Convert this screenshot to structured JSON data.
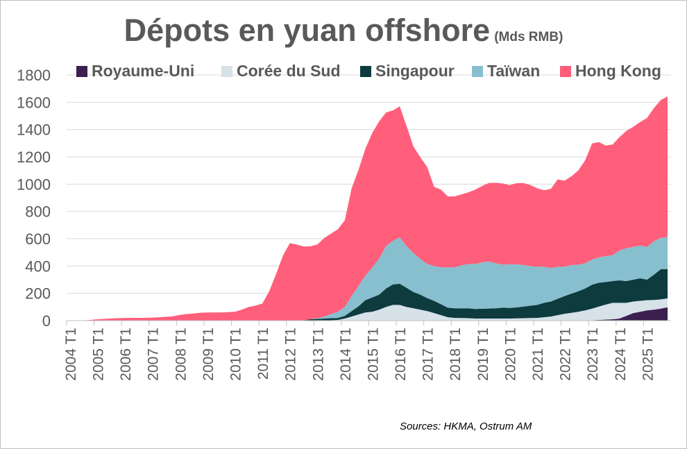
{
  "chart_data": {
    "type": "area",
    "stacked": true,
    "title": "Dépots en yuan offshore",
    "subtitle": "(Mds RMB)",
    "xlabel": "",
    "ylabel": "",
    "ylim": [
      0,
      1800
    ],
    "yticks": [
      0,
      200,
      400,
      600,
      800,
      1000,
      1200,
      1400,
      1600,
      1800
    ],
    "grid": true,
    "legend": "top",
    "x_tick_labels": [
      "2004 T1",
      "2005 T1",
      "2006 T1",
      "2007 T1",
      "2008 T1",
      "2009 T1",
      "2010 T1",
      "2011 T1",
      "2012 T1",
      "2013 T1",
      "2014 T1",
      "2015 T1",
      "2016 T1",
      "2017 T1",
      "2018 T1",
      "2019 T1",
      "2020 T1",
      "2021 T1",
      "2022 T1",
      "2023 T1",
      "2024 T1",
      "2025 T1"
    ],
    "x_start": "2004 T1",
    "x_end": "2025 T4",
    "series": [
      {
        "name": "Royaume-Uni",
        "color": "#3b1f4e",
        "points": [
          [
            "2004 T1",
            0
          ],
          [
            "2022 T4",
            0
          ],
          [
            "2023 T1",
            3
          ],
          [
            "2023 T4",
            10
          ],
          [
            "2024 T1",
            15
          ],
          [
            "2024 T2",
            35
          ],
          [
            "2024 T3",
            55
          ],
          [
            "2024 T4",
            65
          ],
          [
            "2025 T1",
            75
          ],
          [
            "2025 T2",
            80
          ],
          [
            "2025 T3",
            88
          ],
          [
            "2025 T4",
            98
          ]
        ]
      },
      {
        "name": "Corée du Sud",
        "color": "#d6e1e8",
        "points": [
          [
            "2004 T1",
            0
          ],
          [
            "2013 T2",
            0
          ],
          [
            "2013 T4",
            5
          ],
          [
            "2014 T1",
            15
          ],
          [
            "2014 T2",
            30
          ],
          [
            "2014 T3",
            45
          ],
          [
            "2014 T4",
            60
          ],
          [
            "2015 T1",
            65
          ],
          [
            "2015 T2",
            80
          ],
          [
            "2015 T3",
            100
          ],
          [
            "2015 T4",
            115
          ],
          [
            "2016 T1",
            115
          ],
          [
            "2016 T2",
            100
          ],
          [
            "2016 T4",
            80
          ],
          [
            "2017 T1",
            70
          ],
          [
            "2017 T2",
            55
          ],
          [
            "2017 T3",
            40
          ],
          [
            "2017 T4",
            25
          ],
          [
            "2018 T1",
            20
          ],
          [
            "2018 T3",
            18
          ],
          [
            "2018 T4",
            15
          ],
          [
            "2019 T2",
            15
          ],
          [
            "2019 T3",
            15
          ],
          [
            "2020 T1",
            15
          ],
          [
            "2020 T3",
            18
          ],
          [
            "2021 T1",
            20
          ],
          [
            "2021 T3",
            30
          ],
          [
            "2022 T1",
            50
          ],
          [
            "2022 T3",
            65
          ],
          [
            "2023 T1",
            85
          ],
          [
            "2023 T3",
            110
          ],
          [
            "2023 T4",
            120
          ],
          [
            "2024 T1",
            115
          ],
          [
            "2024 T2",
            95
          ],
          [
            "2024 T3",
            85
          ],
          [
            "2025 T1",
            75
          ],
          [
            "2025 T3",
            68
          ],
          [
            "2025 T4",
            65
          ]
        ]
      },
      {
        "name": "Singapour",
        "color": "#0d3b3e",
        "points": [
          [
            "2004 T1",
            0
          ],
          [
            "2011 T1",
            0
          ],
          [
            "2011 T4",
            2
          ],
          [
            "2012 T3",
            3
          ],
          [
            "2012 T4",
            10
          ],
          [
            "2013 T2",
            15
          ],
          [
            "2013 T4",
            15
          ],
          [
            "2014 T1",
            20
          ],
          [
            "2014 T2",
            40
          ],
          [
            "2014 T3",
            60
          ],
          [
            "2014 T4",
            90
          ],
          [
            "2015 T1",
            105
          ],
          [
            "2015 T2",
            110
          ],
          [
            "2015 T3",
            135
          ],
          [
            "2015 T4",
            150
          ],
          [
            "2016 T1",
            155
          ],
          [
            "2016 T2",
            140
          ],
          [
            "2016 T3",
            120
          ],
          [
            "2016 T4",
            110
          ],
          [
            "2017 T1",
            95
          ],
          [
            "2017 T2",
            90
          ],
          [
            "2017 T3",
            80
          ],
          [
            "2017 T4",
            70
          ],
          [
            "2018 T1",
            70
          ],
          [
            "2018 T3",
            72
          ],
          [
            "2018 T4",
            70
          ],
          [
            "2019 T1",
            72
          ],
          [
            "2019 T3",
            75
          ],
          [
            "2019 T4",
            80
          ],
          [
            "2020 T1",
            78
          ],
          [
            "2020 T2",
            80
          ],
          [
            "2020 T3",
            85
          ],
          [
            "2020 T4",
            90
          ],
          [
            "2021 T1",
            95
          ],
          [
            "2021 T2",
            105
          ],
          [
            "2021 T3",
            110
          ],
          [
            "2021 T4",
            120
          ],
          [
            "2022 T1",
            130
          ],
          [
            "2022 T2",
            140
          ],
          [
            "2022 T3",
            150
          ],
          [
            "2022 T4",
            160
          ],
          [
            "2023 T1",
            175
          ],
          [
            "2023 T2",
            175
          ],
          [
            "2023 T3",
            165
          ],
          [
            "2023 T4",
            160
          ],
          [
            "2024 T1",
            165
          ],
          [
            "2024 T2",
            160
          ],
          [
            "2024 T3",
            160
          ],
          [
            "2024 T4",
            165
          ],
          [
            "2025 T1",
            150
          ],
          [
            "2025 T2",
            185
          ],
          [
            "2025 T3",
            220
          ],
          [
            "2025 T4",
            215
          ]
        ]
      },
      {
        "name": "Taïwan",
        "color": "#88bfcf",
        "points": [
          [
            "2004 T1",
            0
          ],
          [
            "2012 T4",
            0
          ],
          [
            "2013 T1",
            5
          ],
          [
            "2013 T2",
            15
          ],
          [
            "2013 T3",
            30
          ],
          [
            "2013 T4",
            45
          ],
          [
            "2014 T1",
            65
          ],
          [
            "2014 T2",
            110
          ],
          [
            "2014 T3",
            150
          ],
          [
            "2014 T4",
            180
          ],
          [
            "2015 T1",
            220
          ],
          [
            "2015 T2",
            265
          ],
          [
            "2015 T3",
            310
          ],
          [
            "2015 T4",
            320
          ],
          [
            "2016 T1",
            340
          ],
          [
            "2016 T2",
            305
          ],
          [
            "2016 T3",
            285
          ],
          [
            "2016 T4",
            262
          ],
          [
            "2017 T1",
            250
          ],
          [
            "2017 T2",
            255
          ],
          [
            "2017 T3",
            270
          ],
          [
            "2017 T4",
            295
          ],
          [
            "2018 T1",
            300
          ],
          [
            "2018 T2",
            315
          ],
          [
            "2018 T3",
            325
          ],
          [
            "2018 T4",
            330
          ],
          [
            "2019 T1",
            340
          ],
          [
            "2019 T2",
            345
          ],
          [
            "2019 T3",
            330
          ],
          [
            "2019 T4",
            315
          ],
          [
            "2020 T1",
            320
          ],
          [
            "2020 T2",
            315
          ],
          [
            "2020 T3",
            305
          ],
          [
            "2020 T4",
            290
          ],
          [
            "2021 T1",
            280
          ],
          [
            "2021 T2",
            265
          ],
          [
            "2021 T3",
            245
          ],
          [
            "2021 T4",
            235
          ],
          [
            "2022 T1",
            215
          ],
          [
            "2022 T2",
            210
          ],
          [
            "2022 T3",
            195
          ],
          [
            "2022 T4",
            185
          ],
          [
            "2023 T1",
            185
          ],
          [
            "2023 T2",
            185
          ],
          [
            "2023 T3",
            190
          ],
          [
            "2023 T4",
            190
          ],
          [
            "2024 T1",
            220
          ],
          [
            "2024 T2",
            240
          ],
          [
            "2024 T3",
            240
          ],
          [
            "2024 T4",
            240
          ],
          [
            "2025 T1",
            240
          ],
          [
            "2025 T2",
            245
          ],
          [
            "2025 T3",
            230
          ],
          [
            "2025 T4",
            235
          ]
        ]
      },
      {
        "name": "Hong Kong",
        "color": "#ff5f7a",
        "points": [
          [
            "2004 T1",
            0
          ],
          [
            "2004 T2",
            1
          ],
          [
            "2004 T3",
            2
          ],
          [
            "2004 T4",
            5
          ],
          [
            "2005 T1",
            10
          ],
          [
            "2005 T2",
            13
          ],
          [
            "2005 T3",
            16
          ],
          [
            "2005 T4",
            18
          ],
          [
            "2006 T1",
            20
          ],
          [
            "2006 T2",
            20
          ],
          [
            "2006 T3",
            20
          ],
          [
            "2006 T4",
            21
          ],
          [
            "2007 T1",
            22
          ],
          [
            "2007 T2",
            25
          ],
          [
            "2007 T3",
            28
          ],
          [
            "2007 T4",
            32
          ],
          [
            "2008 T1",
            42
          ],
          [
            "2008 T2",
            48
          ],
          [
            "2008 T3",
            52
          ],
          [
            "2008 T4",
            58
          ],
          [
            "2009 T1",
            60
          ],
          [
            "2009 T2",
            60
          ],
          [
            "2009 T3",
            60
          ],
          [
            "2009 T4",
            62
          ],
          [
            "2010 T1",
            65
          ],
          [
            "2010 T2",
            80
          ],
          [
            "2010 T3",
            100
          ],
          [
            "2010 T4",
            110
          ],
          [
            "2011 T1",
            125
          ],
          [
            "2011 T2",
            215
          ],
          [
            "2011 T3",
            340
          ],
          [
            "2011 T4",
            475
          ],
          [
            "2012 T1",
            565
          ],
          [
            "2012 T2",
            555
          ],
          [
            "2012 T3",
            540
          ],
          [
            "2012 T4",
            535
          ],
          [
            "2013 T1",
            540
          ],
          [
            "2013 T2",
            575
          ],
          [
            "2013 T3",
            590
          ],
          [
            "2013 T4",
            605
          ],
          [
            "2014 T1",
            635
          ],
          [
            "2014 T2",
            790
          ],
          [
            "2014 T3",
            850
          ],
          [
            "2014 T4",
            930
          ],
          [
            "2015 T1",
            985
          ],
          [
            "2015 T2",
            1005
          ],
          [
            "2015 T3",
            980
          ],
          [
            "2015 T4",
            955
          ],
          [
            "2016 T1",
            960
          ],
          [
            "2016 T2",
            880
          ],
          [
            "2016 T3",
            780
          ],
          [
            "2016 T4",
            745
          ],
          [
            "2017 T1",
            710
          ],
          [
            "2017 T2",
            580
          ],
          [
            "2017 T3",
            570
          ],
          [
            "2017 T4",
            520
          ],
          [
            "2018 T1",
            520
          ],
          [
            "2018 T2",
            520
          ],
          [
            "2018 T3",
            525
          ],
          [
            "2018 T4",
            545
          ],
          [
            "2019 T1",
            560
          ],
          [
            "2019 T2",
            575
          ],
          [
            "2019 T3",
            590
          ],
          [
            "2019 T4",
            595
          ],
          [
            "2020 T1",
            580
          ],
          [
            "2020 T2",
            595
          ],
          [
            "2020 T3",
            600
          ],
          [
            "2020 T4",
            595
          ],
          [
            "2021 T1",
            575
          ],
          [
            "2021 T2",
            560
          ],
          [
            "2021 T3",
            580
          ],
          [
            "2021 T4",
            640
          ],
          [
            "2022 T1",
            630
          ],
          [
            "2022 T2",
            650
          ],
          [
            "2022 T3",
            690
          ],
          [
            "2022 T4",
            755
          ],
          [
            "2023 T1",
            850
          ],
          [
            "2023 T2",
            845
          ],
          [
            "2023 T3",
            810
          ],
          [
            "2023 T4",
            810
          ],
          [
            "2024 T1",
            830
          ],
          [
            "2024 T2",
            860
          ],
          [
            "2024 T3",
            880
          ],
          [
            "2024 T4",
            905
          ],
          [
            "2025 T1",
            945
          ],
          [
            "2025 T2",
            975
          ],
          [
            "2025 T3",
            1010
          ],
          [
            "2025 T4",
            1030
          ]
        ]
      }
    ]
  },
  "source": "Sources: HKMA, Ostrum AM"
}
